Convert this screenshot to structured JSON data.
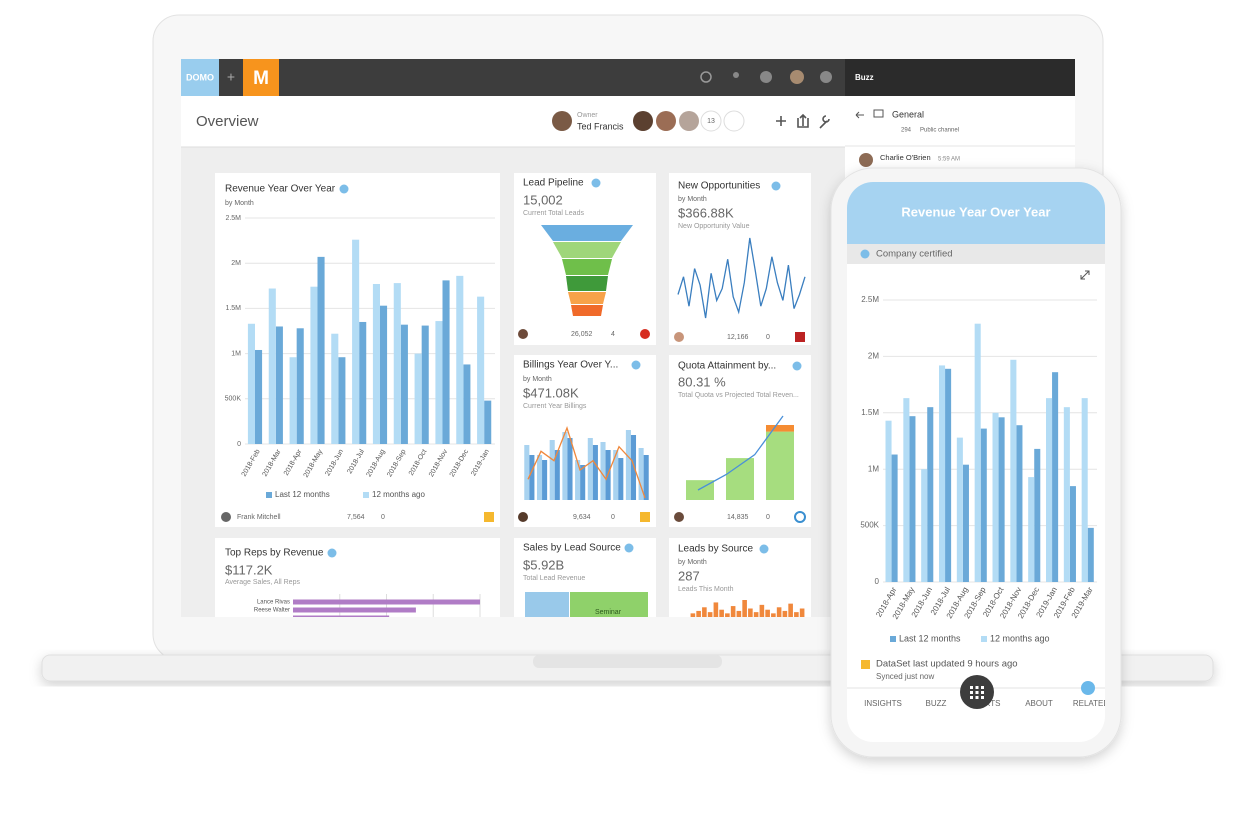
{
  "header": {
    "logo": "DOMO",
    "plus": "+",
    "app": "M",
    "buzz": "Buzz"
  },
  "toolbar": {
    "title": "Overview",
    "owner_label": "Owner",
    "owner": "Ted Francis",
    "member_count": "13"
  },
  "cards": [
    {
      "title": "Revenue Year Over Year",
      "subtitle": "by Month",
      "chart_data": {
        "type": "bar",
        "categories": [
          "2018-Feb",
          "2018-Mar",
          "2018-Apr",
          "2018-May",
          "2018-Jun",
          "2018-Jul",
          "2018-Aug",
          "2018-Sep",
          "2018-Oct",
          "2018-Nov",
          "2018-Dec",
          "2019-Jan"
        ],
        "series": [
          {
            "name": "Last 12 months",
            "color": "#6aa9d8",
            "values": [
              1040000,
              1300000,
              1280000,
              2070000,
              960000,
              1350000,
              1530000,
              1320000,
              1310000,
              1810000,
              880000,
              480000
            ]
          },
          {
            "name": "12 months ago",
            "color": "#b3dcf5",
            "values": [
              1330000,
              1720000,
              960000,
              1740000,
              1220000,
              2260000,
              1770000,
              1780000,
              1000000,
              1360000,
              1860000,
              1630000
            ]
          }
        ],
        "ylim": [
          0,
          2500000
        ],
        "yticks": [
          0,
          {
            "value": 500000,
            "label": "500K"
          },
          {
            "value": 1000000,
            "label": "1M"
          },
          {
            "value": 1500000,
            "label": "1.5M"
          },
          {
            "value": 2000000,
            "label": "2M"
          },
          {
            "value": 2500000,
            "label": "2.5M"
          }
        ],
        "grid": true
      },
      "footer": {
        "author": "Frank Mitchell",
        "views": "7,564",
        "comments": "0"
      }
    },
    {
      "title": "Lead Pipeline",
      "value": "15,002",
      "caption": "Current Total Leads",
      "footer": {
        "views": "26,052",
        "comments": "4"
      }
    },
    {
      "title": "New Opportunities",
      "subtitle": "by Month",
      "value": "$366.88K",
      "caption": "New Opportunity Value",
      "chart_data": {
        "type": "line",
        "color": "#3a7ebf",
        "values": [
          40,
          55,
          30,
          62,
          48,
          20,
          58,
          35,
          45,
          70,
          38,
          25,
          50,
          88,
          60,
          30,
          45,
          72,
          50,
          35,
          65,
          28,
          40,
          55
        ]
      },
      "footer": {
        "views": "12,166",
        "comments": "0"
      }
    },
    {
      "title": "Billings Year Over Y...",
      "subtitle": "by Month",
      "value": "$471.08K",
      "caption": "Current Year Billings",
      "chart_data": {
        "type": "bar",
        "series": [
          {
            "color": "#a9d3f0",
            "values": [
              55,
              45,
              60,
              68,
              40,
              62,
              58,
              50,
              70,
              52
            ]
          },
          {
            "color": "#5b9bd5",
            "values": [
              45,
              40,
              50,
              62,
              35,
              55,
              50,
              42,
              65,
              45
            ]
          }
        ],
        "line": {
          "color": "#f0883c",
          "values": [
            40,
            70,
            60,
            95,
            50,
            60,
            40,
            75,
            60,
            20
          ]
        }
      },
      "footer": {
        "views": "9,634",
        "comments": "0"
      }
    },
    {
      "title": "Quota Attainment by...",
      "value": "80.31 %",
      "caption": "Total Quota vs Projected Total Reven...",
      "chart_data": {
        "type": "stacked-bar",
        "series": [
          {
            "color": "#a6dd7f",
            "values": [
              18,
              38,
              62
            ]
          },
          {
            "color": "#f58c33",
            "values": [
              null,
              null,
              6
            ]
          }
        ],
        "line": {
          "color": "#4a90d9",
          "values": [
            8,
            22,
            40,
            75
          ]
        }
      },
      "footer": {
        "views": "14,835",
        "comments": "0"
      }
    },
    {
      "title": "Top Reps by Revenue",
      "value": "$117.2K",
      "caption": "Average Sales, All Reps",
      "chart_data": {
        "type": "hbar",
        "categories": [
          "Lance Rivas",
          "Reese Walter",
          null
        ],
        "values": [
          175,
          115,
          90
        ],
        "color": "#b07cc6",
        "grid": true
      }
    },
    {
      "title": "Sales by Lead Source",
      "value": "$5.92B",
      "caption": "Total Lead Revenue",
      "segment": "Seminar"
    },
    {
      "title": "Leads by Source",
      "subtitle": "by Month",
      "value": "287",
      "caption": "Leads This Month",
      "chart_data": {
        "type": "bar",
        "series": [
          {
            "color": "#f0883c",
            "values": [
              3,
              5,
              8,
              4,
              12,
              6,
              3,
              9,
              5,
              14,
              7,
              4,
              10,
              6,
              3,
              8,
              5,
              11,
              4,
              7
            ]
          }
        ]
      }
    }
  ],
  "buzz_panel": {
    "channel": "General",
    "members": "294",
    "visibility": "Public channel",
    "author": "Charlie O'Brien",
    "time": "5:59 AM"
  },
  "phone": {
    "title": "Revenue Year Over Year",
    "certified": "Company certified",
    "chart_data": {
      "type": "bar",
      "categories": [
        "2018-Apr",
        "2018-May",
        "2018-Jun",
        "2018-Jul",
        "2018-Aug",
        "2018-Sep",
        "2018-Oct",
        "2018-Nov",
        "2018-Dec",
        "2019-Jan",
        "2019-Feb",
        "2019-Mar"
      ],
      "series": [
        {
          "name": "Last 12 months",
          "color": "#6aa9d8",
          "values": [
            1130000,
            1470000,
            1550000,
            1890000,
            1040000,
            1360000,
            1460000,
            1390000,
            1180000,
            1860000,
            850000,
            480000
          ]
        },
        {
          "name": "12 months ago",
          "color": "#b3dcf5",
          "values": [
            1430000,
            1630000,
            1000000,
            1920000,
            1280000,
            2290000,
            1500000,
            1970000,
            930000,
            1630000,
            1550000,
            1630000
          ]
        }
      ],
      "ylim": [
        0,
        2500000
      ],
      "yticks": [
        0,
        {
          "value": 500000,
          "label": "500K"
        },
        {
          "value": 1000000,
          "label": "1M"
        },
        {
          "value": 1500000,
          "label": "1.5M"
        },
        {
          "value": 2000000,
          "label": "2M"
        },
        {
          "value": 2500000,
          "label": "2.5M"
        }
      ],
      "grid": true
    },
    "status": "DataSet last updated 9 hours ago",
    "synced": "Synced just now",
    "tabs": [
      "INSIGHTS",
      "BUZZ",
      "ALERTS",
      "ABOUT",
      "RELATED"
    ]
  }
}
